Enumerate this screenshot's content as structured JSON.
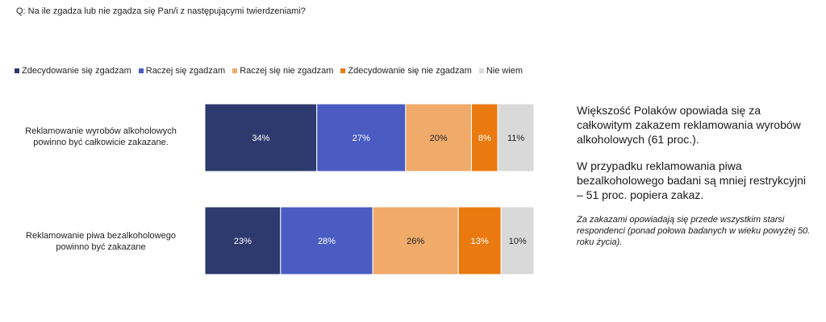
{
  "question": "Q: Na ile zgadza lub nie zgadza się Pan/i z następującymi twierdzeniami?",
  "colors": {
    "zdecydowanie_zgadzam": "#2e3a6e",
    "raczej_zgadzam": "#4a5cc2",
    "raczej_nie_zgadzam": "#f0aa6a",
    "zdecydowanie_nie_zgadzam": "#ea7a0f",
    "nie_wiem": "#d9d9d9"
  },
  "legend": [
    {
      "label": "Zdecydowanie się zgadzam",
      "color": "#2e3a6e"
    },
    {
      "label": "Raczej się zgadzam",
      "color": "#4a5cc2"
    },
    {
      "label": "Raczej się nie zgadzam",
      "color": "#f0aa6a"
    },
    {
      "label": "Zdecydowanie się nie zgadzam",
      "color": "#ea7a0f"
    },
    {
      "label": "Nie wiem",
      "color": "#d9d9d9"
    }
  ],
  "rows": [
    {
      "label_line1": "Reklamowanie wyrobów alkoholowych",
      "label_line2": "powinno być całkowicie zakazane."
    },
    {
      "label_line1": "Reklamowanie piwa bezalkoholowego",
      "label_line2": "powinno być zakazane"
    }
  ],
  "chart_data": {
    "type": "bar",
    "orientation": "horizontal",
    "stacked": true,
    "percent_scale": true,
    "categories": [
      "Reklamowanie wyrobów alkoholowych powinno być całkowicie zakazane.",
      "Reklamowanie piwa bezalkoholowego powinno być zakazane"
    ],
    "series": [
      {
        "name": "Zdecydowanie się zgadzam",
        "color": "#2e3a6e",
        "values": [
          34,
          23
        ],
        "labels": [
          "34%",
          "23%"
        ],
        "label_color": "#ffffff"
      },
      {
        "name": "Raczej się zgadzam",
        "color": "#4a5cc2",
        "values": [
          27,
          28
        ],
        "labels": [
          "27%",
          "28%"
        ],
        "label_color": "#ffffff"
      },
      {
        "name": "Raczej się nie zgadzam",
        "color": "#f0aa6a",
        "values": [
          20,
          26
        ],
        "labels": [
          "20%",
          "26%"
        ],
        "label_color": "#222222"
      },
      {
        "name": "Zdecydowanie się nie zgadzam",
        "color": "#ea7a0f",
        "values": [
          8,
          13
        ],
        "labels": [
          "8%",
          "13%"
        ],
        "label_color": "#ffffff"
      },
      {
        "name": "Nie wiem",
        "color": "#d9d9d9",
        "values": [
          11,
          10
        ],
        "labels": [
          "11%",
          "10%"
        ],
        "label_color": "#222222"
      }
    ],
    "legend_position": "top-left",
    "grid": false
  },
  "side": {
    "p1": "Większość Polaków opowiada się za całkowitym zakazem reklamowania wyrobów alkoholowych (61 proc.).",
    "p2": "W przypadku reklamowania piwa bezalkoholowego badani są mniej restrykcyjni – 51 proc. popiera zakaz.",
    "note": "Za zakazami opowiadają się przede wszystkim starsi respondenci (ponad połowa badanych w wieku powyżej 50. roku życia)."
  }
}
